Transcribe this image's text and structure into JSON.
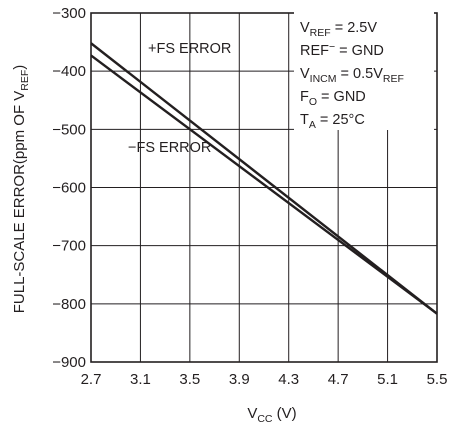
{
  "chart_data": {
    "type": "line",
    "title": "",
    "xlabel": {
      "main": "V",
      "sub": "CC",
      "rest": " (V)"
    },
    "ylabel": {
      "prefix": "FULL-SCALE ERROR(ppm OF V",
      "sub": "REF",
      "suffix": ")"
    },
    "xlim": [
      2.7,
      5.5
    ],
    "ylim": [
      -900,
      -300
    ],
    "x_ticks": [
      2.7,
      3.1,
      3.5,
      3.9,
      4.3,
      4.7,
      5.1,
      5.5
    ],
    "x_tick_labels": [
      "2.7",
      "3.1",
      "3.5",
      "3.9",
      "4.3",
      "4.7",
      "5.1",
      "5.5"
    ],
    "y_ticks": [
      -300,
      -400,
      -500,
      -600,
      -700,
      -800,
      -900
    ],
    "y_tick_labels": [
      "−300",
      "−400",
      "−500",
      "−600",
      "−700",
      "−800",
      "−900"
    ],
    "grid": true,
    "line_color": "#231f20",
    "series": [
      {
        "name": "+FS ERROR",
        "x": [
          2.7,
          5.5
        ],
        "y": [
          -352,
          -817
        ]
      },
      {
        "name": "−FS ERROR",
        "x": [
          2.7,
          5.5
        ],
        "y": [
          -373,
          -817
        ]
      }
    ],
    "conditions": [
      {
        "pre": "V",
        "sub": "REF",
        "post": " = 2.5V"
      },
      {
        "pre": "REF",
        "sup": "−",
        "post": " = GND"
      },
      {
        "pre": "V",
        "sub": "INCM",
        "post": " = 0.5V",
        "sub2": "REF"
      },
      {
        "pre": "F",
        "sub": "O",
        "post": " = GND"
      },
      {
        "pre": "T",
        "sub": "A",
        "post": " = 25°C"
      }
    ]
  }
}
